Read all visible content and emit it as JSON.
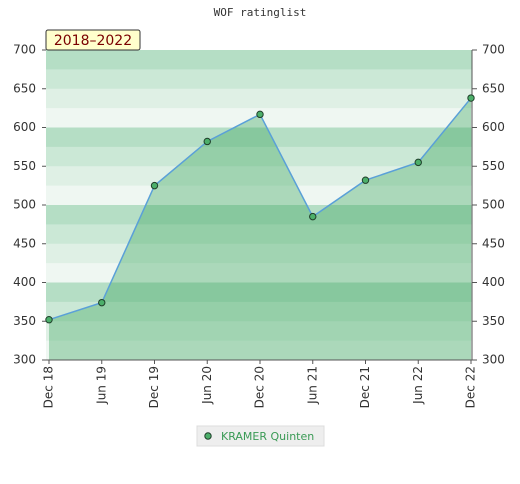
{
  "chart_data": {
    "type": "area",
    "title": "WOF ratinglist",
    "annotation": "2018–2022",
    "categories": [
      "Dec 18",
      "Jun 19",
      "Dec 19",
      "Jun 20",
      "Dec 20",
      "Jun 21",
      "Dec 21",
      "Jun 22",
      "Dec 22"
    ],
    "series": [
      {
        "name": "KRAMER Quinten",
        "color": "#5aa0d8",
        "marker_color": "#4caf6a",
        "values": [
          352,
          374,
          525,
          582,
          617,
          485,
          532,
          555,
          638
        ]
      }
    ],
    "ylim": [
      300,
      700
    ],
    "yticks": [
      300,
      350,
      400,
      450,
      500,
      550,
      600,
      650,
      700
    ],
    "y2lim": [
      300,
      700
    ],
    "y2ticks": [
      300,
      350,
      400,
      450,
      500,
      550,
      600,
      650,
      700
    ],
    "legend": "bottom"
  }
}
